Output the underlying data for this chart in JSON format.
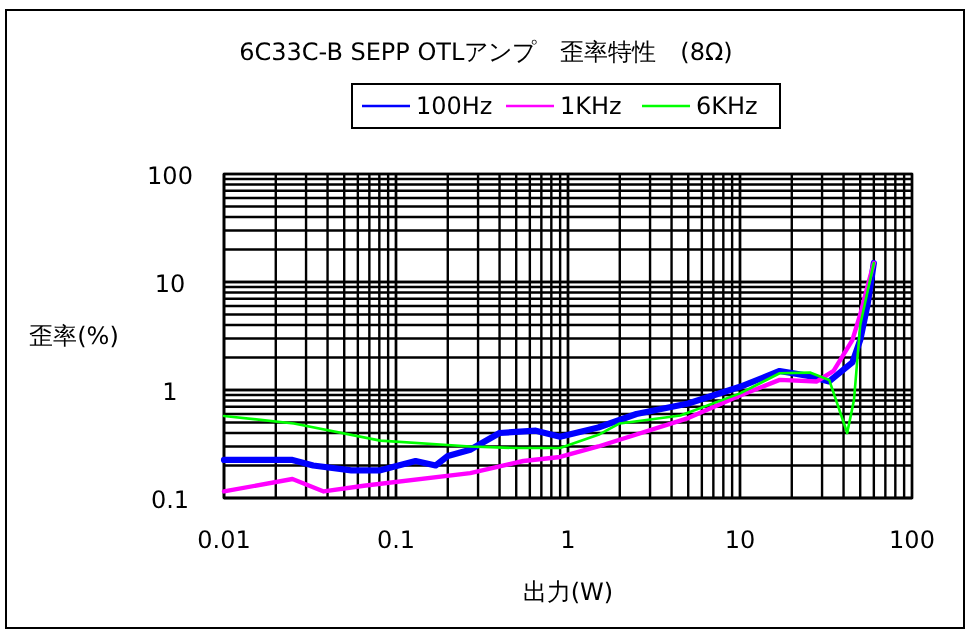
{
  "chart_data": {
    "type": "line",
    "title": "6C33C-B SEPP OTLアンプ　歪率特性　(8Ω)",
    "xlabel": "出力(W)",
    "ylabel": "歪率(%)",
    "log": "xy",
    "xlim": [
      0.01,
      100
    ],
    "ylim": [
      0.1,
      100
    ],
    "xticks": [
      0.01,
      0.1,
      1,
      10,
      100
    ],
    "yticks": [
      0.1,
      1,
      10,
      100
    ],
    "grid": true,
    "legend": "top",
    "line_style": "solid",
    "marker": "none",
    "series": [
      {
        "name": "100Hz",
        "color": "#0000ff",
        "x": [
          0.01,
          0.025,
          0.033,
          0.055,
          0.08,
          0.13,
          0.17,
          0.2,
          0.27,
          0.4,
          0.65,
          0.9,
          1.5,
          2.5,
          5,
          10,
          17,
          25,
          33,
          45,
          50,
          55,
          60
        ],
        "values": [
          0.225,
          0.225,
          0.2,
          0.18,
          0.18,
          0.22,
          0.2,
          0.245,
          0.28,
          0.4,
          0.42,
          0.37,
          0.45,
          0.6,
          0.75,
          1.07,
          1.5,
          1.35,
          1.2,
          1.8,
          2.9,
          6,
          15
        ]
      },
      {
        "name": "1KHz",
        "color": "#ff00ff",
        "x": [
          0.01,
          0.025,
          0.038,
          0.065,
          0.27,
          0.55,
          0.9,
          1.5,
          5,
          10,
          17,
          28,
          35,
          45,
          50,
          55,
          60
        ],
        "values": [
          0.115,
          0.15,
          0.115,
          0.13,
          0.17,
          0.22,
          0.24,
          0.3,
          0.55,
          0.89,
          1.24,
          1.2,
          1.5,
          2.9,
          5,
          9,
          15
        ]
      },
      {
        "name": "6KHz",
        "color": "#00ff00",
        "x": [
          0.01,
          0.0255,
          0.081,
          0.27,
          0.5,
          0.9,
          1.53,
          2,
          4.5,
          10,
          17,
          25.5,
          33,
          42,
          46,
          50,
          55,
          60
        ],
        "values": [
          0.575,
          0.49,
          0.34,
          0.3,
          0.29,
          0.29,
          0.39,
          0.49,
          0.58,
          0.93,
          1.43,
          1.45,
          1.24,
          0.4,
          0.81,
          4,
          8,
          15
        ]
      }
    ]
  }
}
